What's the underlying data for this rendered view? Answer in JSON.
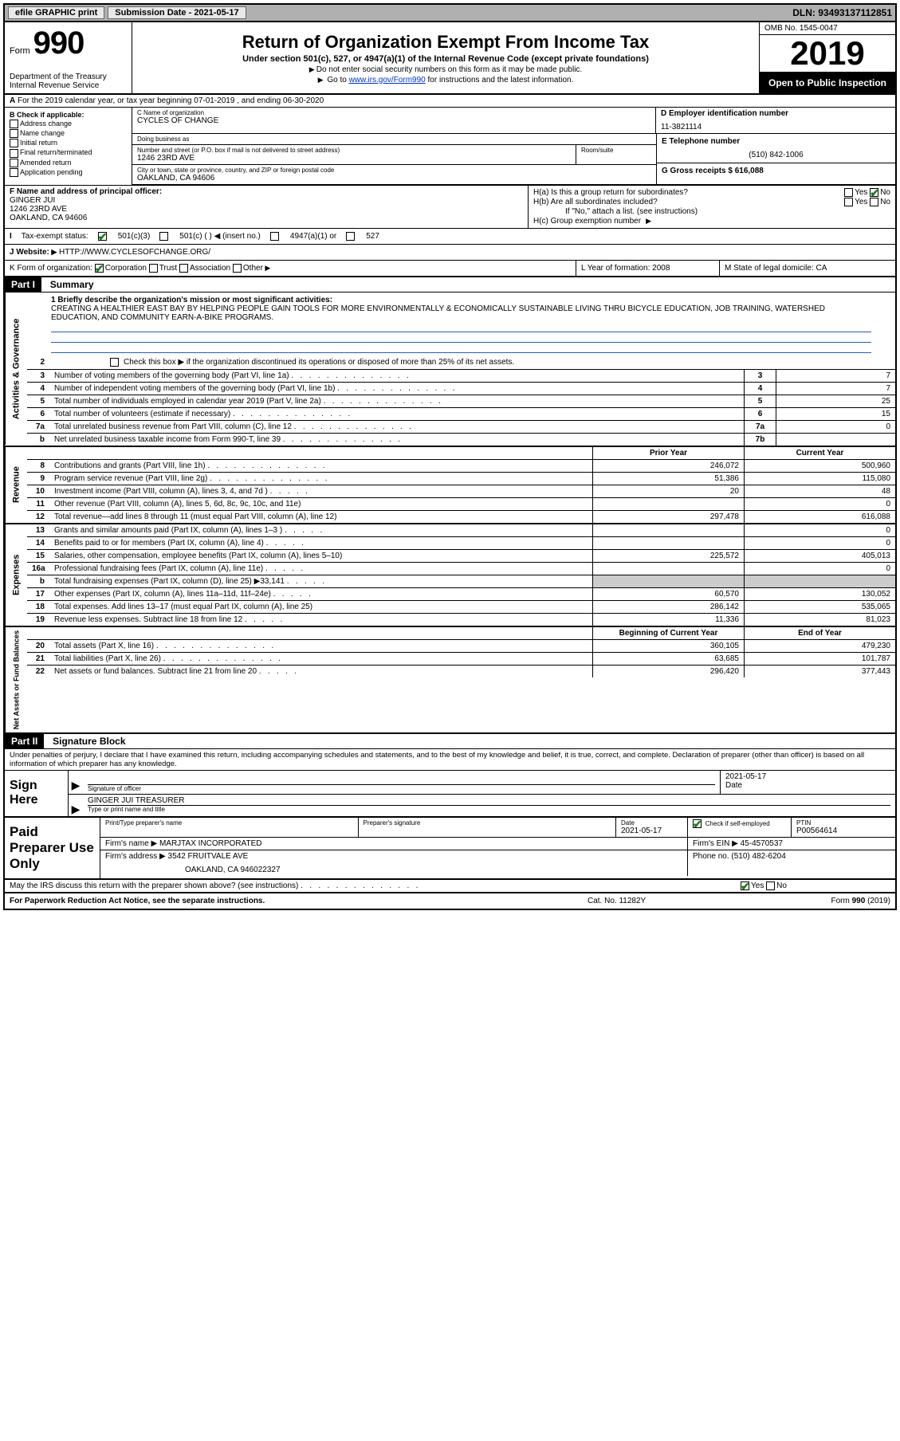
{
  "topbar": {
    "efile": "efile GRAPHIC print",
    "submission_label": "Submission Date - 2021-05-17",
    "dln": "DLN: 93493137112851"
  },
  "header": {
    "form_word": "Form",
    "form_num": "990",
    "dept": "Department of the Treasury\nInternal Revenue Service",
    "title": "Return of Organization Exempt From Income Tax",
    "sub": "Under section 501(c), 527, or 4947(a)(1) of the Internal Revenue Code (except private foundations)",
    "line1": "Do not enter social security numbers on this form as it may be made public.",
    "line2_pre": "Go to ",
    "line2_link": "www.irs.gov/Form990",
    "line2_post": " for instructions and the latest information.",
    "omb": "OMB No. 1545-0047",
    "year": "2019",
    "open": "Open to Public Inspection"
  },
  "row_a": "For the 2019 calendar year, or tax year beginning 07-01-2019    , and ending 06-30-2020",
  "box_b": {
    "hdr": "B Check if applicable:",
    "items": [
      "Address change",
      "Name change",
      "Initial return",
      "Final return/terminated",
      "Amended return",
      "Application pending"
    ]
  },
  "box_c": {
    "name_lbl": "C Name of organization",
    "name": "CYCLES OF CHANGE",
    "dba_lbl": "Doing business as",
    "dba": "",
    "street_lbl": "Number and street (or P.O. box if mail is not delivered to street address)",
    "street": "1246 23RD AVE",
    "room_lbl": "Room/suite",
    "city_lbl": "City or town, state or province, country, and ZIP or foreign postal code",
    "city": "OAKLAND, CA  94606"
  },
  "box_d": {
    "lbl": "D Employer identification number",
    "val": "11-3821114"
  },
  "box_e": {
    "lbl": "E Telephone number",
    "val": "(510) 842-1006"
  },
  "box_g": {
    "lbl": "G Gross receipts $ 616,088"
  },
  "box_f": {
    "lbl": "F  Name and address of principal officer:",
    "name": "GINGER JUI",
    "addr1": "1246 23RD AVE",
    "addr2": "OAKLAND, CA  94606"
  },
  "box_h": {
    "a": "H(a)  Is this a group return for subordinates?",
    "a_yn": {
      "yes": "Yes",
      "no": "No"
    },
    "b": "H(b)  Are all subordinates included?",
    "b_note": "If \"No,\" attach a list. (see instructions)",
    "c": "H(c)  Group exemption number"
  },
  "line_i": {
    "lbl": "Tax-exempt status:",
    "opts": [
      "501(c)(3)",
      "501(c) (  ) ◀ (insert no.)",
      "4947(a)(1) or",
      "527"
    ]
  },
  "line_j": {
    "lbl": "Website:",
    "val": "HTTP://WWW.CYCLESOFCHANGE.ORG/"
  },
  "line_k": {
    "lbl": "K Form of organization:",
    "opts": [
      "Corporation",
      "Trust",
      "Association",
      "Other"
    ]
  },
  "line_l": {
    "lbl": "L Year of formation: 2008"
  },
  "line_m": {
    "lbl": "M State of legal domicile: CA"
  },
  "part1": {
    "hdr": "Part I",
    "title": "Summary",
    "l1_lbl": "1  Briefly describe the organization's mission or most significant activities:",
    "l1_text": "CREATING A HEALTHIER EAST BAY BY HELPING PEOPLE GAIN TOOLS FOR MORE ENVIRONMENTALLY & ECONOMICALLY SUSTAINABLE LIVING THRU BICYCLE EDUCATION, JOB TRAINING, WATERSHED EDUCATION, AND COMMUNITY EARN-A-BIKE PROGRAMS.",
    "l2": "Check this box ▶       if the organization discontinued its operations or disposed of more than 25% of its net assets.",
    "rows_ag": [
      {
        "n": "3",
        "t": "Number of voting members of the governing body (Part VI, line 1a)",
        "b": "3",
        "v": "7"
      },
      {
        "n": "4",
        "t": "Number of independent voting members of the governing body (Part VI, line 1b)",
        "b": "4",
        "v": "7"
      },
      {
        "n": "5",
        "t": "Total number of individuals employed in calendar year 2019 (Part V, line 2a)",
        "b": "5",
        "v": "25"
      },
      {
        "n": "6",
        "t": "Total number of volunteers (estimate if necessary)",
        "b": "6",
        "v": "15"
      },
      {
        "n": "7a",
        "t": "Total unrelated business revenue from Part VIII, column (C), line 12",
        "b": "7a",
        "v": "0"
      },
      {
        "n": "b",
        "t": "Net unrelated business taxable income from Form 990-T, line 39",
        "b": "7b",
        "v": ""
      }
    ],
    "col_hdr": {
      "prior": "Prior Year",
      "cur": "Current Year"
    },
    "rev_rows": [
      {
        "n": "8",
        "t": "Contributions and grants (Part VIII, line 1h)",
        "p": "246,072",
        "c": "500,960"
      },
      {
        "n": "9",
        "t": "Program service revenue (Part VIII, line 2g)",
        "p": "51,386",
        "c": "115,080"
      },
      {
        "n": "10",
        "t": "Investment income (Part VIII, column (A), lines 3, 4, and 7d )",
        "p": "20",
        "c": "48"
      },
      {
        "n": "11",
        "t": "Other revenue (Part VIII, column (A), lines 5, 6d, 8c, 9c, 10c, and 11e)",
        "p": "",
        "c": "0"
      },
      {
        "n": "12",
        "t": "Total revenue—add lines 8 through 11 (must equal Part VIII, column (A), line 12)",
        "p": "297,478",
        "c": "616,088"
      }
    ],
    "exp_rows": [
      {
        "n": "13",
        "t": "Grants and similar amounts paid (Part IX, column (A), lines 1–3 )",
        "p": "",
        "c": "0"
      },
      {
        "n": "14",
        "t": "Benefits paid to or for members (Part IX, column (A), line 4)",
        "p": "",
        "c": "0"
      },
      {
        "n": "15",
        "t": "Salaries, other compensation, employee benefits (Part IX, column (A), lines 5–10)",
        "p": "225,572",
        "c": "405,013"
      },
      {
        "n": "16a",
        "t": "Professional fundraising fees (Part IX, column (A), line 11e)",
        "p": "",
        "c": "0"
      },
      {
        "n": "b",
        "t": "Total fundraising expenses (Part IX, column (D), line 25) ▶33,141",
        "p": "gray",
        "c": "gray"
      },
      {
        "n": "17",
        "t": "Other expenses (Part IX, column (A), lines 11a–11d, 11f–24e)",
        "p": "60,570",
        "c": "130,052"
      },
      {
        "n": "18",
        "t": "Total expenses. Add lines 13–17 (must equal Part IX, column (A), line 25)",
        "p": "286,142",
        "c": "535,065"
      },
      {
        "n": "19",
        "t": "Revenue less expenses. Subtract line 18 from line 12",
        "p": "11,336",
        "c": "81,023"
      }
    ],
    "na_hdr": {
      "prior": "Beginning of Current Year",
      "cur": "End of Year"
    },
    "na_rows": [
      {
        "n": "20",
        "t": "Total assets (Part X, line 16)",
        "p": "360,105",
        "c": "479,230"
      },
      {
        "n": "21",
        "t": "Total liabilities (Part X, line 26)",
        "p": "63,685",
        "c": "101,787"
      },
      {
        "n": "22",
        "t": "Net assets or fund balances. Subtract line 21 from line 20",
        "p": "296,420",
        "c": "377,443"
      }
    ],
    "side_ag": "Activities & Governance",
    "side_rev": "Revenue",
    "side_exp": "Expenses",
    "side_na": "Net Assets or Fund Balances"
  },
  "part2": {
    "hdr": "Part II",
    "title": "Signature Block",
    "decl": "Under penalties of perjury, I declare that I have examined this return, including accompanying schedules and statements, and to the best of my knowledge and belief, it is true, correct, and complete. Declaration of preparer (other than officer) is based on all information of which preparer has any knowledge.",
    "sign_here": "Sign Here",
    "sig_lbl": "Signature of officer",
    "date_lbl": "Date",
    "date_val": "2021-05-17",
    "name_title": "GINGER JUI TREASURER",
    "name_lbl": "Type or print name and title"
  },
  "prep": {
    "hdr": "Paid Preparer Use Only",
    "r1": {
      "c1_lbl": "Print/Type preparer's name",
      "c1": "",
      "c2_lbl": "Preparer's signature",
      "c2": "",
      "c3_lbl": "Date",
      "c3": "2021-05-17",
      "c4_lbl": "Check        if self-employed",
      "c5_lbl": "PTIN",
      "c5": "P00564614"
    },
    "r2": {
      "firm_lbl": "Firm's name    ▶",
      "firm": "MARJTAX INCORPORATED",
      "ein_lbl": "Firm's EIN ▶",
      "ein": "45-4570537"
    },
    "r3": {
      "addr_lbl": "Firm's address ▶",
      "addr1": "3542 FRUITVALE AVE",
      "addr2": "OAKLAND, CA  946022327",
      "phone_lbl": "Phone no.",
      "phone": "(510) 482-6204"
    },
    "discuss": "May the IRS discuss this return with the preparer shown above? (see instructions)"
  },
  "footer": {
    "l1": "For Paperwork Reduction Act Notice, see the separate instructions.",
    "l2": "Cat. No. 11282Y",
    "l3": "Form 990 (2019)"
  }
}
